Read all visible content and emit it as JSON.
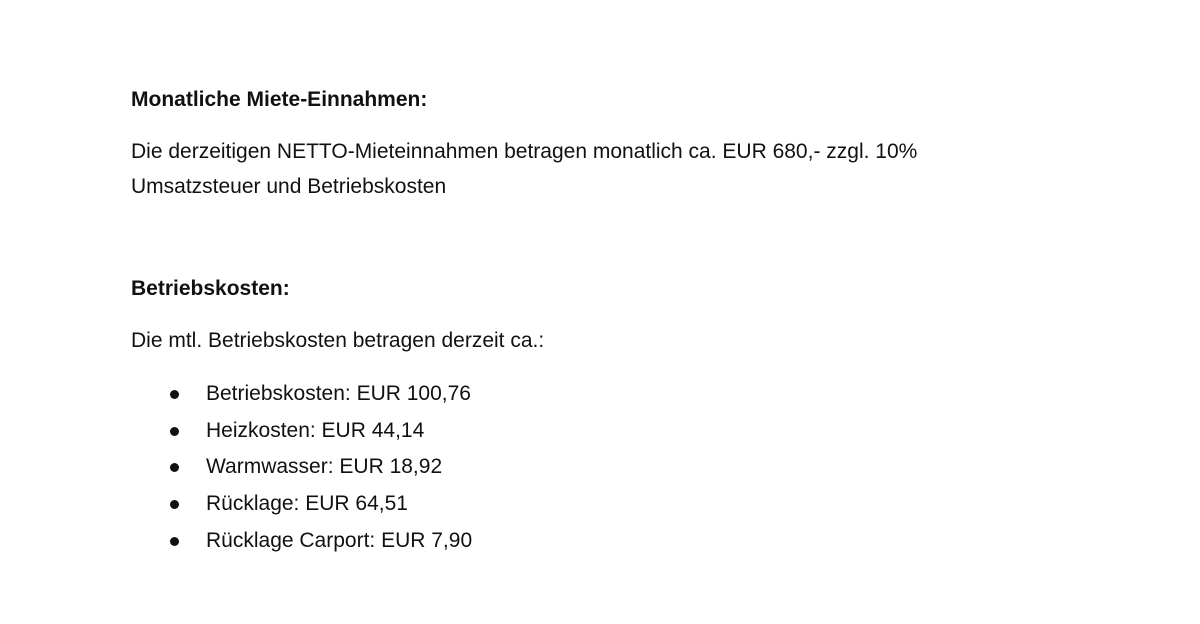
{
  "section1": {
    "heading": "Monatliche Miete-Einnahmen:",
    "lines": [
      "Die derzeitigen NETTO-Mieteinnahmen betragen monatlich ca. EUR 680,- zzgl. 10%",
      "Umsatzsteuer und Betriebskosten"
    ]
  },
  "section2": {
    "heading": "Betriebskosten:",
    "intro": "Die mtl. Betriebskosten betragen derzeit ca.:",
    "items": [
      "Betriebskosten: EUR 100,76",
      "Heizkosten: EUR 44,14",
      "Warmwasser: EUR 18,92",
      "Rücklage: EUR 64,51",
      "Rücklage Carport: EUR 7,90"
    ]
  }
}
